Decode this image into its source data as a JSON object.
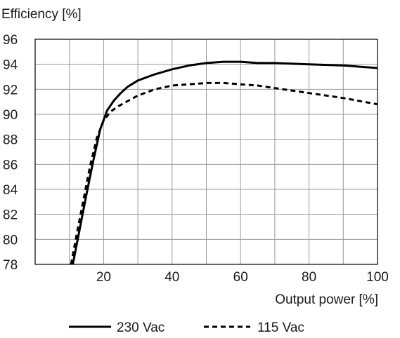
{
  "chart_data": {
    "type": "line",
    "ylabel": "Efficiency [%]",
    "xlabel": "Output power [%]",
    "xlim": [
      0,
      100
    ],
    "ylim": [
      78,
      96
    ],
    "xticks": [
      20,
      40,
      60,
      80,
      100
    ],
    "yticks": [
      78,
      80,
      82,
      84,
      86,
      88,
      90,
      92,
      94,
      96
    ],
    "x_grid_step": 10,
    "y_grid_step": 2,
    "grid": true,
    "legend_position": "bottom",
    "series": [
      {
        "name": "230 Vac",
        "style": "solid",
        "color": "#000000",
        "x": [
          11,
          13,
          15,
          17,
          19,
          21,
          23,
          25,
          27,
          30,
          35,
          40,
          45,
          50,
          55,
          60,
          65,
          70,
          80,
          90,
          100
        ],
        "y": [
          78.0,
          80.8,
          83.6,
          86.3,
          88.8,
          90.3,
          91.1,
          91.7,
          92.2,
          92.7,
          93.2,
          93.6,
          93.9,
          94.1,
          94.2,
          94.2,
          94.1,
          94.1,
          94.0,
          93.9,
          93.7
        ]
      },
      {
        "name": "115 Vac",
        "style": "dashed",
        "color": "#000000",
        "x": [
          10.5,
          12,
          14,
          16,
          18,
          20,
          22,
          24,
          26,
          30,
          35,
          40,
          45,
          50,
          55,
          60,
          65,
          70,
          80,
          90,
          100
        ],
        "y": [
          78.0,
          80.2,
          83.0,
          85.8,
          88.1,
          89.5,
          90.2,
          90.6,
          90.9,
          91.5,
          92.0,
          92.3,
          92.4,
          92.5,
          92.5,
          92.4,
          92.3,
          92.1,
          91.7,
          91.3,
          90.8
        ]
      }
    ]
  }
}
